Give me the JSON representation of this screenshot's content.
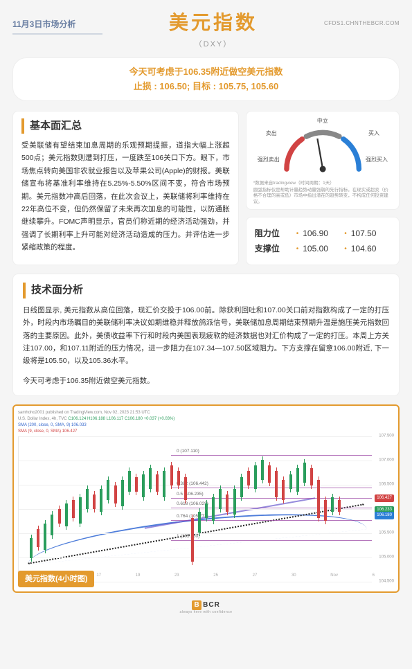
{
  "header": {
    "date_label": "11月3日市场分析",
    "title": "美元指数",
    "subtitle": "（DXY）",
    "site": "CFDS1.CHNTHEBCR.COM"
  },
  "signal": {
    "line1": "今天可考虑于106.35附近做空美元指数",
    "line2": "止损 : 106.50; 目标 : 105.75, 105.60"
  },
  "fundamental": {
    "title": "基本面汇总",
    "body": "受美联储有望结束加息周期的乐观预期提振，道指大幅上涨超500点；美元指数则遭到打压，一度跌至106关口下方。眼下，市场焦点转向美国非农就业报告以及苹果公司(Apple)的财报。美联储宣布将基准利率维持在5.25%-5.50%区间不变，符合市场预期。美元指数冲高后回落，在此次会议上，美联储将利率维持在22年高位不变，但仍然保留了未来再次加息的可能性，以防通胀继续攀升。FOMC声明显示，官员们称近期的经济活动强劲，并强调了长期利率上升可能对经济活动造成的压力。并评估进一步紧缩政策的程度。"
  },
  "gauge": {
    "labels": {
      "neutral": "中立",
      "sell": "卖出",
      "buy": "买入",
      "strong_sell": "强烈卖出",
      "strong_buy": "强烈买入"
    },
    "colors": {
      "sell": "#d14343",
      "neutral": "#888888",
      "buy": "#2a7fd6"
    },
    "needle_angle_deg": -10,
    "note1": "*数据来自tradingview（时间周期：1天）",
    "note2": "圆弧指标仅是帮助计量趋势动量强弱的先行指标，在现实或超卖（价格不合理的高或低）市场中指出潜在的趋势转变，不构成任何投资建议。"
  },
  "levels": {
    "resistance_label": "阻力位",
    "support_label": "支撑位",
    "resistance": [
      "106.90",
      "107.50"
    ],
    "support": [
      "105.00",
      "104.60"
    ]
  },
  "technical": {
    "title": "技术面分析",
    "body": "日线图显示, 美元指数从高位回落，现汇价交投于106.00前。除获利回吐和107.00关口前对指数构成了一定的打压外，时段内市场瞩目的美联储利率决议如期维稳并释放鸽派信号，美联储加息周期结束预期升温是施压美元指数回落的主要原因。此外，美债收益率下行和时段内美国表现疲软的经济数据也对汇价构成了一定的打压。本周上方关注107.00，和107.11附近的压力情况，进一步阻力在107.34—107.50区域阻力。下方支撑在留意106.00附近, 下一级将是105.50，以及105.36水平。",
    "footnote": "今天可考虑于106.35附近做空美元指数。"
  },
  "chart": {
    "credit": "samhoho2001 published on TradingView.com, Nov 02, 2023 21:53 UTC",
    "header_line": "U.S. Dollar Index, 4h, TVC",
    "ohlc": {
      "o": "C106.124",
      "h": "H106.188",
      "l": "L106.117",
      "c": "C106.180",
      "chg": "+0.037 (+0.03%)"
    },
    "sma200": {
      "label": "SMA (200, close, 0, SMA, 9)",
      "value": "106.033",
      "color": "#2a7fd6"
    },
    "sma_b": {
      "label": "SMA (9, close, 0, SMA)",
      "value": "106.427",
      "color": "#d14343"
    },
    "fib_levels": [
      {
        "ratio": "0",
        "price": "107.110"
      },
      {
        "ratio": "0.382",
        "price": "106.442"
      },
      {
        "ratio": "0.5",
        "price": "106.235"
      },
      {
        "ratio": "0.618",
        "price": "106.029"
      },
      {
        "ratio": "0.764",
        "price": "105.773"
      },
      {
        "ratio": "1",
        "price": "105.360"
      }
    ],
    "y_ticks": [
      "107.500",
      "107.000",
      "106.500",
      "106.000",
      "105.500",
      "105.000",
      "104.500"
    ],
    "x_ticks": [
      "9",
      "13",
      "17",
      "19",
      "23",
      "25",
      "27",
      "30",
      "Nov",
      "6"
    ],
    "badges": [
      {
        "text": "106.427",
        "color": "#d14343",
        "top_pct": 40
      },
      {
        "text": "106.233",
        "color": "#2a9d5c",
        "top_pct": 48
      },
      {
        "text": "106.180",
        "color": "#2a7fd6",
        "top_pct": 52
      }
    ],
    "tag": "美元指数(4小时图)",
    "candles": [
      {
        "x": 2,
        "t": 70,
        "h": 14,
        "d": "up"
      },
      {
        "x": 4,
        "t": 64,
        "h": 12,
        "d": "dn"
      },
      {
        "x": 6,
        "t": 60,
        "h": 18,
        "d": "up"
      },
      {
        "x": 8,
        "t": 54,
        "h": 14,
        "d": "up"
      },
      {
        "x": 10,
        "t": 50,
        "h": 10,
        "d": "dn"
      },
      {
        "x": 12,
        "t": 46,
        "h": 16,
        "d": "up"
      },
      {
        "x": 14,
        "t": 44,
        "h": 12,
        "d": "dn"
      },
      {
        "x": 16,
        "t": 42,
        "h": 18,
        "d": "up"
      },
      {
        "x": 18,
        "t": 36,
        "h": 14,
        "d": "up"
      },
      {
        "x": 20,
        "t": 40,
        "h": 10,
        "d": "dn"
      },
      {
        "x": 22,
        "t": 36,
        "h": 16,
        "d": "up"
      },
      {
        "x": 24,
        "t": 30,
        "h": 14,
        "d": "up"
      },
      {
        "x": 26,
        "t": 34,
        "h": 12,
        "d": "dn"
      },
      {
        "x": 28,
        "t": 30,
        "h": 18,
        "d": "up"
      },
      {
        "x": 30,
        "t": 24,
        "h": 14,
        "d": "up"
      },
      {
        "x": 32,
        "t": 28,
        "h": 10,
        "d": "dn"
      },
      {
        "x": 34,
        "t": 26,
        "h": 16,
        "d": "up"
      },
      {
        "x": 36,
        "t": 22,
        "h": 14,
        "d": "up"
      },
      {
        "x": 38,
        "t": 26,
        "h": 12,
        "d": "dn"
      },
      {
        "x": 40,
        "t": 24,
        "h": 18,
        "d": "up"
      },
      {
        "x": 42,
        "t": 20,
        "h": 14,
        "d": "dn"
      },
      {
        "x": 44,
        "t": 24,
        "h": 10,
        "d": "dn"
      },
      {
        "x": 46,
        "t": 28,
        "h": 16,
        "d": "dn"
      },
      {
        "x": 48,
        "t": 56,
        "h": 30,
        "d": "dn"
      },
      {
        "x": 50,
        "t": 52,
        "h": 14,
        "d": "up"
      },
      {
        "x": 52,
        "t": 46,
        "h": 10,
        "d": "up"
      },
      {
        "x": 54,
        "t": 42,
        "h": 16,
        "d": "up"
      },
      {
        "x": 56,
        "t": 36,
        "h": 14,
        "d": "up"
      },
      {
        "x": 58,
        "t": 40,
        "h": 12,
        "d": "dn"
      },
      {
        "x": 60,
        "t": 36,
        "h": 18,
        "d": "up"
      },
      {
        "x": 62,
        "t": 28,
        "h": 14,
        "d": "up"
      },
      {
        "x": 64,
        "t": 24,
        "h": 10,
        "d": "dn"
      },
      {
        "x": 66,
        "t": 20,
        "h": 16,
        "d": "up"
      },
      {
        "x": 68,
        "t": 16,
        "h": 14,
        "d": "up"
      },
      {
        "x": 70,
        "t": 20,
        "h": 12,
        "d": "dn"
      },
      {
        "x": 72,
        "t": 24,
        "h": 18,
        "d": "dn"
      },
      {
        "x": 74,
        "t": 30,
        "h": 14,
        "d": "dn"
      },
      {
        "x": 76,
        "t": 26,
        "h": 10,
        "d": "up"
      },
      {
        "x": 78,
        "t": 22,
        "h": 16,
        "d": "up"
      },
      {
        "x": 80,
        "t": 18,
        "h": 14,
        "d": "up"
      },
      {
        "x": 82,
        "t": 22,
        "h": 12,
        "d": "dn"
      },
      {
        "x": 84,
        "t": 30,
        "h": 26,
        "d": "dn"
      },
      {
        "x": 86,
        "t": 44,
        "h": 14,
        "d": "dn"
      },
      {
        "x": 88,
        "t": 42,
        "h": 10,
        "d": "up"
      },
      {
        "x": 90,
        "t": 44,
        "h": 8,
        "d": "dn"
      }
    ]
  },
  "footer": {
    "brand": "BCR",
    "tagline": "always here with confidence"
  }
}
